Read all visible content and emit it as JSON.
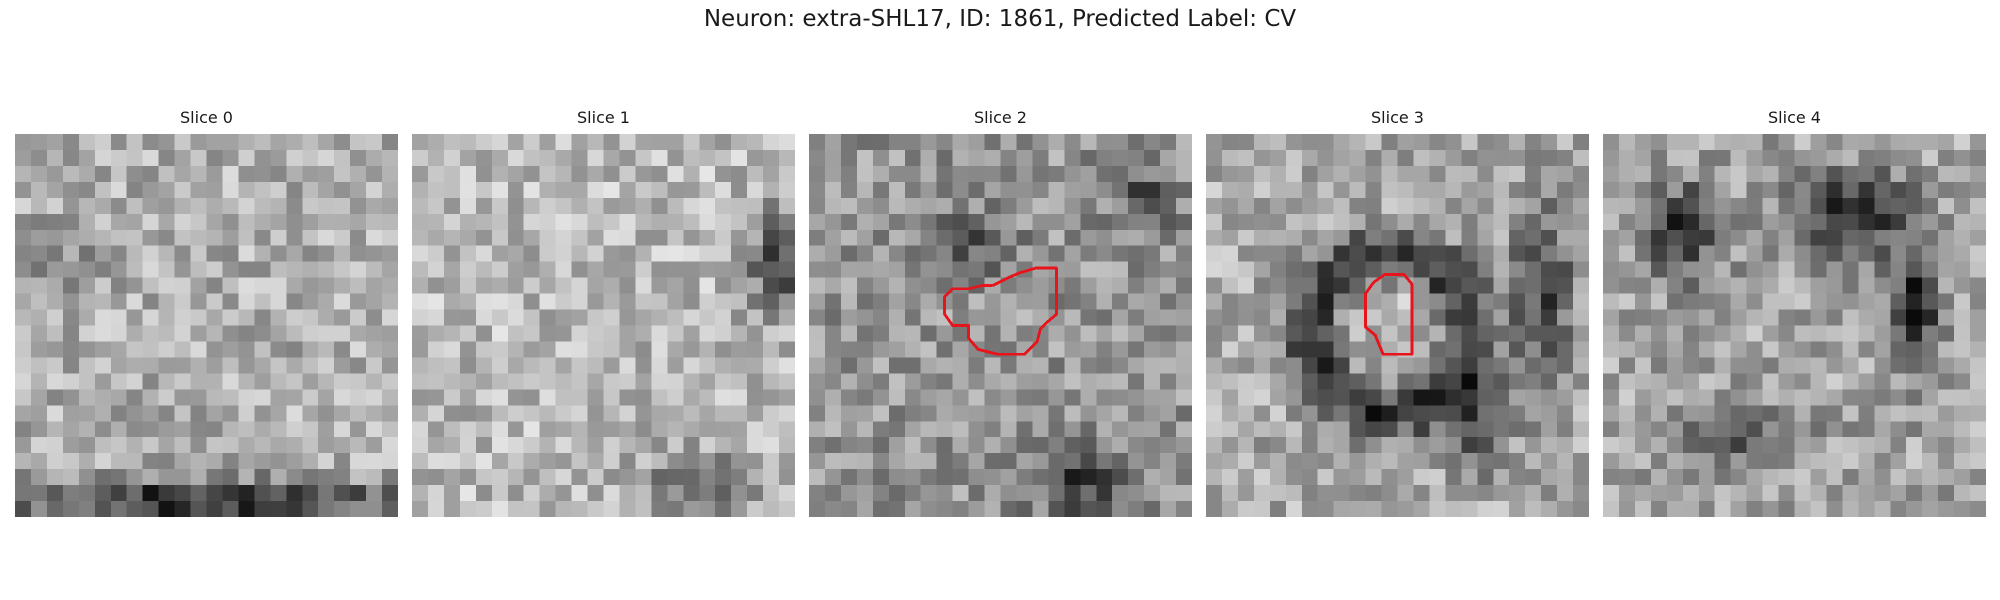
{
  "figure": {
    "title": "Neuron: extra-SHL17, ID: 1861, Predicted Label: CV"
  },
  "slices": [
    {
      "title": "Slice 0",
      "grid": 24,
      "seed": 11,
      "base": 175,
      "has_contour": false
    },
    {
      "title": "Slice 1",
      "grid": 24,
      "seed": 23,
      "base": 185,
      "has_contour": false
    },
    {
      "title": "Slice 2",
      "grid": 24,
      "seed": 37,
      "base": 150,
      "has_contour": true
    },
    {
      "title": "Slice 3",
      "grid": 24,
      "seed": 53,
      "base": 170,
      "has_contour": true
    },
    {
      "title": "Slice 4",
      "grid": 24,
      "seed": 71,
      "base": 165,
      "has_contour": false
    }
  ],
  "colors": {
    "contour": "#e8141b",
    "background": "#ffffff"
  }
}
